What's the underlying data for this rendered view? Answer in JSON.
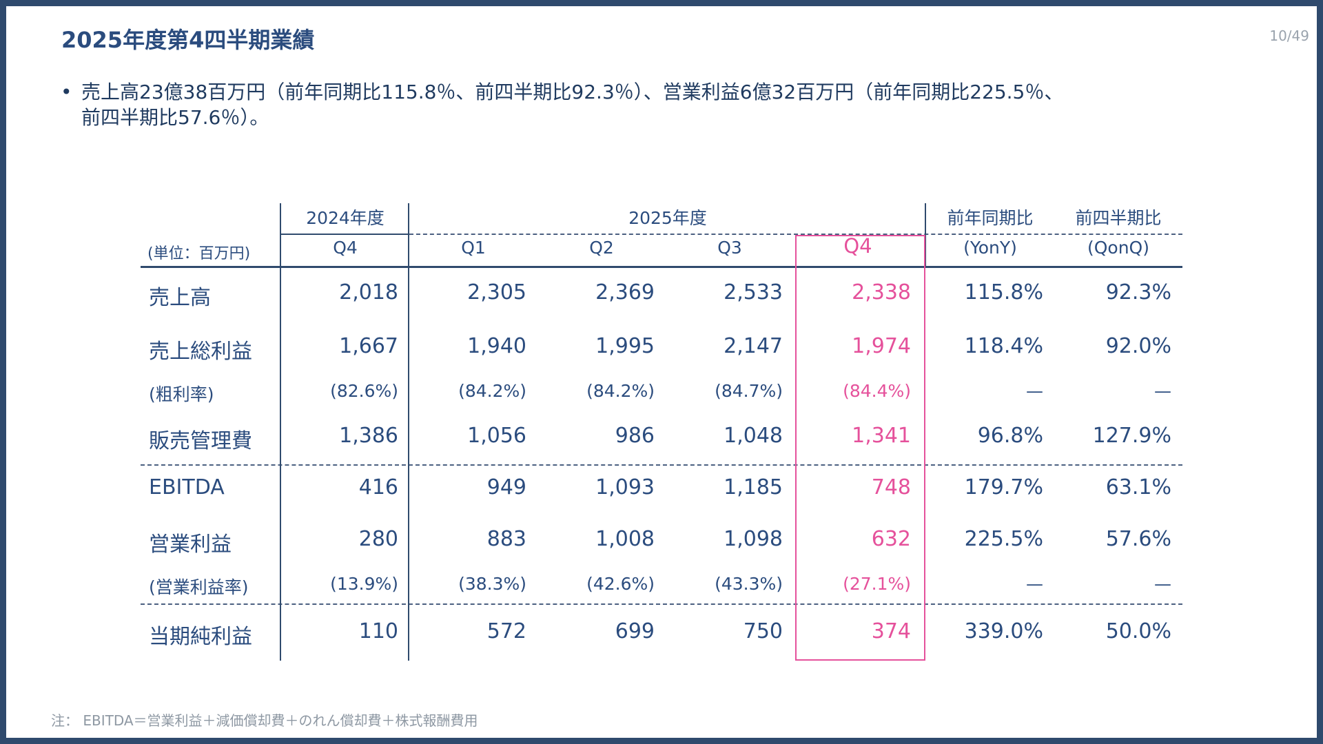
{
  "slide": {
    "title": "2025年度第4四半期業績",
    "page": "10/49",
    "bullet": "売上高23億38百万円（前年同期比115.8％、前四半期比92.3％）、営業利益6億32百万円（前年同期比225.5％、前四半期比57.6％）。",
    "bullet_line1": "売上高23億38百万円（前年同期比115.8％、前四半期比92.3％）、営業利益6億32百万円（前年同期比225.5％、",
    "bullet_line2": "前四半期比57.6％）。",
    "note": "注： EBITDA＝営業利益＋減価償却費＋のれん償却費＋株式報酬費用"
  },
  "table": {
    "unit": "(単位：百万円)",
    "group_2024": "2024年度",
    "group_2025": "2025年度",
    "yoy_header": "前年同期比",
    "qoq_header": "前四半期比",
    "yoy_sub": "(YonY)",
    "qoq_sub": "(QonQ)",
    "columns": [
      "Q4",
      "Q1",
      "Q2",
      "Q3",
      "Q4"
    ],
    "rows": [
      {
        "label": "売上高",
        "values": [
          "2,018",
          "2,305",
          "2,369",
          "2,533",
          "2,338"
        ],
        "yoy": "115.8%",
        "qoq": "92.3%"
      },
      {
        "label": "売上総利益",
        "values": [
          "1,667",
          "1,940",
          "1,995",
          "2,147",
          "1,974"
        ],
        "yoy": "118.4%",
        "qoq": "92.0%"
      },
      {
        "label": "(粗利率)",
        "values": [
          "(82.6%)",
          "(84.2%)",
          "(84.2%)",
          "(84.7%)",
          "(84.4%)"
        ],
        "yoy": "—",
        "qoq": "—"
      },
      {
        "label": "販売管理費",
        "values": [
          "1,386",
          "1,056",
          "986",
          "1,048",
          "1,341"
        ],
        "yoy": "96.8%",
        "qoq": "127.9%"
      },
      {
        "label": "EBITDA",
        "values": [
          "416",
          "949",
          "1,093",
          "1,185",
          "748"
        ],
        "yoy": "179.7%",
        "qoq": "63.1%"
      },
      {
        "label": "営業利益",
        "values": [
          "280",
          "883",
          "1,008",
          "1,098",
          "632"
        ],
        "yoy": "225.5%",
        "qoq": "57.6%"
      },
      {
        "label": "(営業利益率)",
        "values": [
          "(13.9%)",
          "(38.3%)",
          "(42.6%)",
          "(43.3%)",
          "(27.1%)"
        ],
        "yoy": "—",
        "qoq": "—"
      },
      {
        "label": "当期純利益",
        "values": [
          "110",
          "572",
          "699",
          "750",
          "374"
        ],
        "yoy": "339.0%",
        "qoq": "50.0%"
      }
    ]
  },
  "colors": {
    "navy": "#2f4a6d",
    "title_blue": "#2b4c7e",
    "highlight_pink": "#e5519b"
  }
}
